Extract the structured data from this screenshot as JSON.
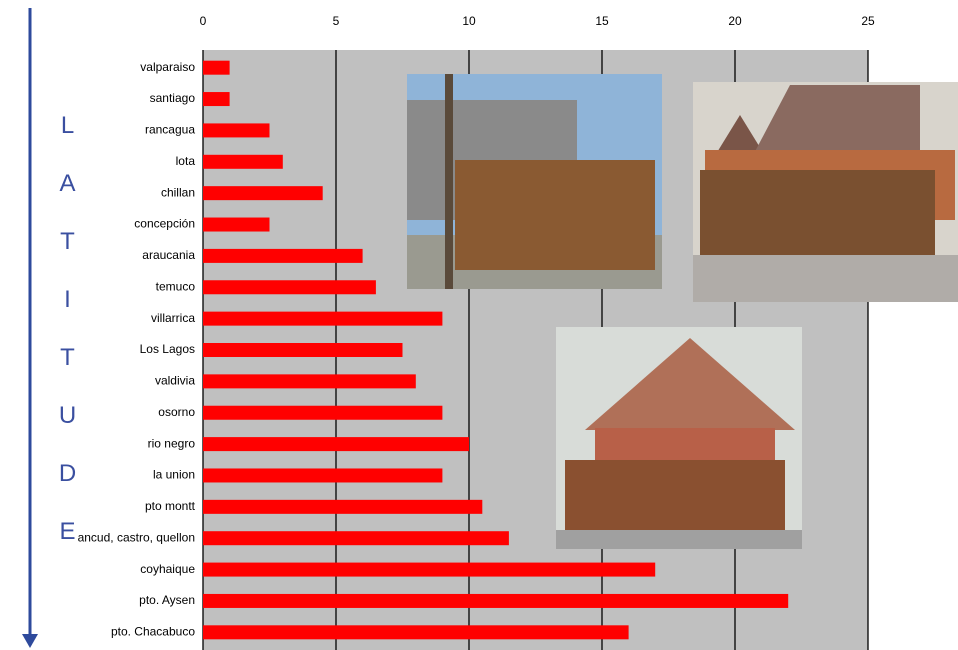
{
  "chart_data": {
    "type": "bar",
    "orientation": "horizontal",
    "categories": [
      "valparaiso",
      "santiago",
      "rancagua",
      "lota",
      "chillan",
      "concepción",
      "araucania",
      "temuco",
      "villarrica",
      "Los Lagos",
      "valdivia",
      "osorno",
      "rio negro",
      "la union",
      "pto montt",
      "ancud, castro, quellon",
      "coyhaique",
      "pto. Aysen",
      "pto. Chacabuco"
    ],
    "values": [
      1,
      1,
      2.5,
      3,
      4.5,
      2.5,
      6,
      6.5,
      9,
      7.5,
      8,
      9,
      10,
      9,
      10.5,
      11.5,
      17,
      22,
      16
    ],
    "color": "#ff0000",
    "xlim": [
      0,
      25
    ],
    "xticks": [
      0,
      5,
      10,
      15,
      20,
      25
    ],
    "grid": true,
    "y_axis_label": "LATITUDE"
  }
}
